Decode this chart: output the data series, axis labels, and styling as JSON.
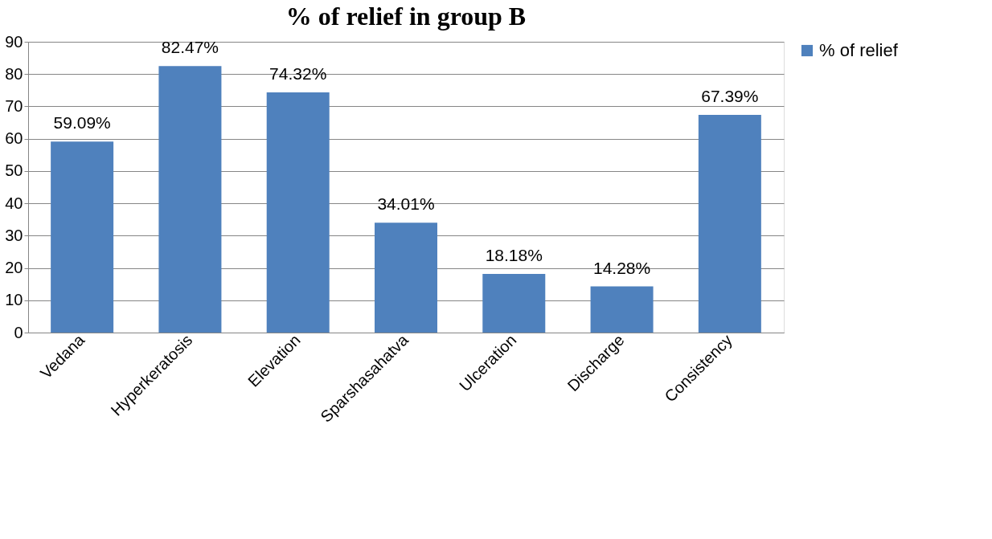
{
  "chart_data": {
    "type": "bar",
    "title": "% of relief in group B",
    "categories": [
      "Vedana",
      "Hyperkeratosis",
      "Elevation",
      "Sparshasahatva",
      "Ulceration",
      "Discharge",
      "Consistency"
    ],
    "series": [
      {
        "name": "% of relief",
        "color": "#4f81bd",
        "values": [
          59.09,
          82.47,
          74.32,
          34.01,
          18.18,
          14.28,
          67.39
        ],
        "value_labels": [
          "59.09%",
          "82.47%",
          "74.32%",
          "34.01%",
          "18.18%",
          "14.28%",
          "67.39%"
        ]
      }
    ],
    "ylim": [
      0,
      90
    ],
    "yticks": [
      0,
      10,
      20,
      30,
      40,
      50,
      60,
      70,
      80,
      90
    ],
    "grid": "y",
    "legend": "right"
  }
}
